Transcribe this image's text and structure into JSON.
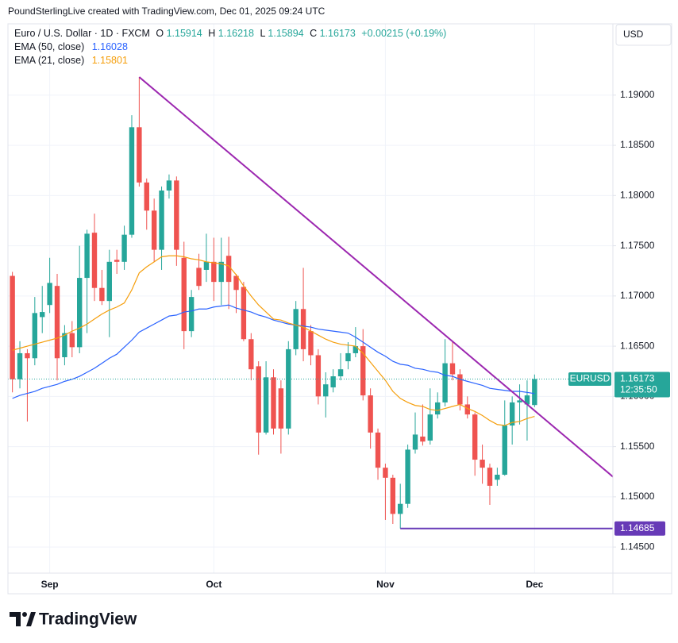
{
  "header": "PoundSterlingLive created with TradingView.com, Dec 01, 2025 09:24 UTC",
  "chart_data": {
    "type": "candlestick",
    "title": "Euro / U.S. Dollar · 1D · FXCM",
    "legend_labels": {
      "open": "O",
      "high": "H",
      "low": "L",
      "close": "C"
    },
    "change": "+0.00215 (+0.19%)",
    "categories": [
      null,
      null,
      null,
      null,
      null,
      "Sep",
      null,
      null,
      null,
      null,
      null,
      null,
      null,
      null,
      null,
      null,
      null,
      null,
      null,
      null,
      null,
      null,
      null,
      null,
      null,
      null,
      null,
      "Oct",
      null,
      null,
      null,
      null,
      null,
      null,
      null,
      null,
      null,
      null,
      null,
      null,
      null,
      null,
      null,
      null,
      null,
      null,
      null,
      null,
      null,
      null,
      "Nov",
      null,
      null,
      null,
      null,
      null,
      null,
      null,
      null,
      null,
      null,
      null,
      null,
      null,
      null,
      null,
      null,
      null,
      null,
      null,
      "Dec"
    ],
    "open": [
      1.172,
      1.1617,
      1.1643,
      1.1638,
      1.1679,
      1.1691,
      1.171,
      1.1639,
      1.1663,
      1.1649,
      1.1718,
      1.1763,
      1.1708,
      1.1695,
      1.1736,
      1.1734,
      1.1761,
      1.1868,
      1.1813,
      1.1785,
      1.1746,
      1.1805,
      1.1815,
      1.1738,
      1.1665,
      1.1728,
      1.1726,
      1.1734,
      1.1714,
      1.174,
      1.172,
      1.1709,
      1.1657,
      1.163,
      1.1564,
      1.1619,
      1.1608,
      1.1568,
      1.1647,
      1.1687,
      1.1665,
      1.1641,
      1.16,
      1.1609,
      1.162,
      1.1635,
      1.1643,
      1.165,
      1.1601,
      1.1564,
      1.1529,
      1.1519,
      1.1483,
      1.1493,
      1.1547,
      1.156,
      1.1556,
      1.1582,
      1.1594,
      1.1633,
      1.1622,
      1.1592,
      1.1582,
      1.1537,
      1.1529,
      1.1517,
      1.1522,
      1.1571,
      1.1594,
      1.1592,
      1.15914
    ],
    "high": [
      1.1724,
      1.1655,
      1.1647,
      1.1699,
      1.171,
      1.1738,
      1.1722,
      1.1671,
      1.1675,
      1.175,
      1.1766,
      1.1782,
      1.1726,
      1.1746,
      1.1746,
      1.177,
      1.188,
      1.1918,
      1.1817,
      1.1797,
      1.1809,
      1.1821,
      1.1819,
      1.1754,
      1.1706,
      1.1742,
      1.1762,
      1.1758,
      1.1758,
      1.1759,
      1.1722,
      1.1714,
      1.1663,
      1.1635,
      1.1635,
      1.1627,
      1.1616,
      1.1655,
      1.1695,
      1.1728,
      1.1671,
      1.1647,
      1.1624,
      1.1627,
      1.1643,
      1.1654,
      1.1669,
      1.1667,
      1.1608,
      1.1568,
      1.1533,
      1.1522,
      1.1513,
      1.1552,
      1.1584,
      1.1592,
      1.1608,
      1.1604,
      1.1657,
      1.1655,
      1.1627,
      1.16,
      1.1584,
      1.1552,
      1.1533,
      1.1529,
      1.1596,
      1.16,
      1.1612,
      1.1616,
      1.16218
    ],
    "low": [
      1.1604,
      1.1608,
      1.1575,
      1.1631,
      1.1663,
      1.1683,
      1.1616,
      1.1631,
      1.1639,
      1.1643,
      1.1663,
      1.1695,
      1.1691,
      1.1659,
      1.1722,
      1.1726,
      1.1758,
      1.1809,
      1.1766,
      1.1734,
      1.1726,
      1.1797,
      1.173,
      1.1647,
      1.1659,
      1.1706,
      1.1714,
      1.1695,
      1.1691,
      1.1687,
      1.1683,
      1.1655,
      1.1616,
      1.1542,
      1.1562,
      1.1562,
      1.1543,
      1.1562,
      1.1641,
      1.1635,
      1.1631,
      1.1592,
      1.1579,
      1.1604,
      1.1616,
      1.1627,
      1.1639,
      1.1596,
      1.1548,
      1.1517,
      1.1477,
      1.1473,
      1.14685,
      1.1489,
      1.1543,
      1.1551,
      1.1552,
      1.1578,
      1.159,
      1.1616,
      1.1586,
      1.1578,
      1.1521,
      1.1513,
      1.1492,
      1.1511,
      1.1521,
      1.1552,
      1.1572,
      1.1556,
      1.15894
    ],
    "close": [
      1.1617,
      1.1643,
      1.1638,
      1.1683,
      1.1684,
      1.1713,
      1.1638,
      1.1663,
      1.1649,
      1.1718,
      1.1762,
      1.1708,
      1.1695,
      1.1734,
      1.1734,
      1.1761,
      1.1868,
      1.1813,
      1.1785,
      1.1746,
      1.1805,
      1.1815,
      1.1746,
      1.1665,
      1.1699,
      1.171,
      1.1734,
      1.1714,
      1.1734,
      1.1714,
      1.1706,
      1.1657,
      1.1627,
      1.1564,
      1.1619,
      1.1568,
      1.1568,
      1.1647,
      1.1687,
      1.1647,
      1.1641,
      1.16,
      1.1612,
      1.162,
      1.1627,
      1.1643,
      1.165,
      1.1601,
      1.1564,
      1.1529,
      1.1519,
      1.1483,
      1.1493,
      1.1547,
      1.1562,
      1.1555,
      1.1582,
      1.1594,
      1.1633,
      1.1622,
      1.1592,
      1.1582,
      1.1537,
      1.1529,
      1.1511,
      1.1522,
      1.1571,
      1.1594,
      1.1596,
      1.1601,
      1.16173
    ],
    "up_color": "#26a69a",
    "down_color": "#ef5350",
    "series": [
      {
        "name": "EMA (50, close)",
        "color": "#2962ff",
        "values": [
          1.1598,
          1.1601,
          1.1603,
          1.1605,
          1.1608,
          1.161,
          1.1612,
          1.1615,
          1.1617,
          1.162,
          1.1624,
          1.1628,
          1.1633,
          1.1638,
          1.1642,
          1.1649,
          1.1656,
          1.1664,
          1.1668,
          1.1672,
          1.1676,
          1.168,
          1.1681,
          1.1684,
          1.1685,
          1.1687,
          1.1687,
          1.1689,
          1.169,
          1.1691,
          1.1688,
          1.1686,
          1.1684,
          1.1681,
          1.1679,
          1.1676,
          1.1674,
          1.1672,
          1.1671,
          1.167,
          1.1669,
          1.1667,
          1.1666,
          1.1665,
          1.1664,
          1.1663,
          1.1659,
          1.1654,
          1.1649,
          1.1644,
          1.164,
          1.1635,
          1.1632,
          1.1631,
          1.1628,
          1.1627,
          1.1625,
          1.1624,
          1.1621,
          1.162,
          1.1617,
          1.1615,
          1.1613,
          1.1611,
          1.1608,
          1.1607,
          1.1606,
          1.1605,
          1.1605,
          1.1604,
          1.16028
        ]
      },
      {
        "name": "EMA (21, close)",
        "color": "#f59e0b",
        "values": [
          1.1646,
          1.1648,
          1.165,
          1.1652,
          1.1654,
          1.1656,
          1.1658,
          1.1661,
          1.1665,
          1.1668,
          1.1672,
          1.1677,
          1.1682,
          1.1686,
          1.1689,
          1.1693,
          1.1706,
          1.1723,
          1.1729,
          1.1734,
          1.1739,
          1.174,
          1.174,
          1.1739,
          1.1737,
          1.1736,
          1.1734,
          1.1733,
          1.1732,
          1.173,
          1.1721,
          1.171,
          1.17,
          1.1691,
          1.1684,
          1.1677,
          1.1676,
          1.1673,
          1.1671,
          1.1669,
          1.1665,
          1.1661,
          1.1657,
          1.1654,
          1.1652,
          1.1651,
          1.165,
          1.1643,
          1.1634,
          1.1625,
          1.1616,
          1.1605,
          1.1598,
          1.1594,
          1.1591,
          1.159,
          1.1587,
          1.1586,
          1.1588,
          1.159,
          1.1592,
          1.1588,
          1.1585,
          1.1581,
          1.1576,
          1.1572,
          1.1571,
          1.1574,
          1.1575,
          1.1578,
          1.15801
        ]
      }
    ],
    "xlim": [
      -0.6,
      80.5
    ],
    "ylim": [
      1.1424,
      1.1971
    ],
    "yticks": [
      {
        "value": 1.145,
        "label": "1.14500"
      },
      {
        "value": 1.15,
        "label": "1.15000"
      },
      {
        "value": 1.155,
        "label": "1.15500"
      },
      {
        "value": 1.16,
        "label": "1.16000"
      },
      {
        "value": 1.165,
        "label": "1.16500"
      },
      {
        "value": 1.17,
        "label": "1.17000"
      },
      {
        "value": 1.175,
        "label": "1.17500"
      },
      {
        "value": 1.18,
        "label": "1.18000"
      },
      {
        "value": 1.185,
        "label": "1.18500"
      },
      {
        "value": 1.19,
        "label": "1.19000"
      }
    ],
    "grid": true,
    "currency": "USD",
    "symbol": "EURUSD",
    "countdown": "12:35:50",
    "last_price_color": "#26a69a",
    "annotations": [
      {
        "type": "trendline",
        "color": "#9c27b0",
        "x": [
          17,
          80.5
        ],
        "y": [
          1.1918,
          1.152
        ]
      },
      {
        "type": "hline",
        "color": "#673ab7",
        "x": 52,
        "y": 1.14685
      }
    ]
  },
  "footer": {
    "logo": "TradingView"
  }
}
